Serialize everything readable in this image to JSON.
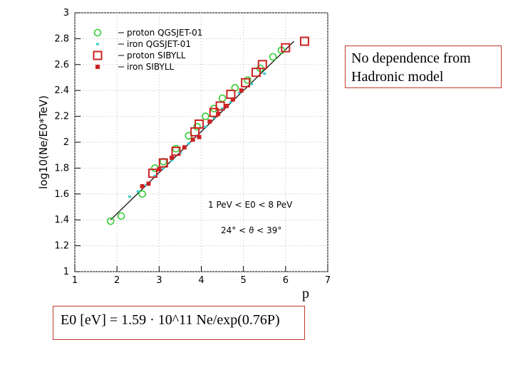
{
  "callout": {
    "line1": "No dependence from",
    "line2": " Hadronic model"
  },
  "formula": "E0 [eV] = 1.59 · 10^11 Ne/exp(0.76P)",
  "xlabel_text": "p",
  "chart_data": {
    "type": "scatter",
    "ylabel": "log10(Ne/E0*TeV)",
    "xlim": [
      1,
      7
    ],
    "ylim": [
      1,
      3
    ],
    "x_ticks": [
      1,
      2,
      3,
      4,
      5,
      6,
      7
    ],
    "y_ticks": [
      1,
      1.2,
      1.4,
      1.6,
      1.8,
      2,
      2.2,
      2.4,
      2.6,
      2.8,
      3
    ],
    "grid": true,
    "legend_position": "top-left",
    "annotations": [
      "1 PeV < E0 < 8 PeV",
      "24° < ϑ < 39°"
    ],
    "fit_line": {
      "x": [
        1.85,
        6.2
      ],
      "y": [
        1.4,
        2.78
      ],
      "color": "#000000"
    },
    "series": [
      {
        "name": "proton QGSJET-01",
        "marker": "open-circle",
        "color": "#33cc33",
        "x": [
          1.85,
          2.1,
          2.6,
          2.9,
          3.1,
          3.4,
          3.7,
          3.9,
          4.1,
          4.3,
          4.5,
          4.8,
          5.1,
          5.4,
          5.7,
          5.9
        ],
        "y": [
          1.39,
          1.43,
          1.6,
          1.8,
          1.85,
          1.95,
          2.05,
          2.12,
          2.2,
          2.26,
          2.34,
          2.42,
          2.48,
          2.57,
          2.66,
          2.71
        ]
      },
      {
        "name": "iron QGSJET-01",
        "marker": "dot",
        "color": "#33cccc",
        "x": [
          2.3,
          2.5,
          2.7,
          2.9,
          3.1,
          3.3,
          3.5,
          3.7,
          3.9,
          4.1,
          4.3,
          4.5,
          4.7,
          4.9,
          5.2,
          5.5
        ],
        "y": [
          1.58,
          1.62,
          1.67,
          1.74,
          1.8,
          1.86,
          1.92,
          1.99,
          2.05,
          2.12,
          2.19,
          2.26,
          2.31,
          2.38,
          2.45,
          2.53
        ]
      },
      {
        "name": "proton SIBYLL",
        "marker": "open-square",
        "color": "#cc2222",
        "x": [
          2.85,
          3.1,
          3.4,
          3.85,
          3.95,
          4.3,
          4.45,
          4.7,
          5.05,
          5.3,
          5.45,
          6.0,
          6.45
        ],
        "y": [
          1.76,
          1.84,
          1.93,
          2.08,
          2.14,
          2.23,
          2.28,
          2.37,
          2.46,
          2.54,
          2.6,
          2.73,
          2.78
        ]
      },
      {
        "name": "iron SIBYLL",
        "marker": "filled-square",
        "color": "#cc2222",
        "x": [
          2.6,
          2.75,
          3.0,
          3.3,
          3.6,
          3.8,
          3.95,
          4.2,
          4.4,
          4.6,
          4.75,
          4.95
        ],
        "y": [
          1.66,
          1.68,
          1.79,
          1.88,
          1.96,
          2.02,
          2.04,
          2.16,
          2.22,
          2.28,
          2.33,
          2.4
        ]
      }
    ]
  }
}
